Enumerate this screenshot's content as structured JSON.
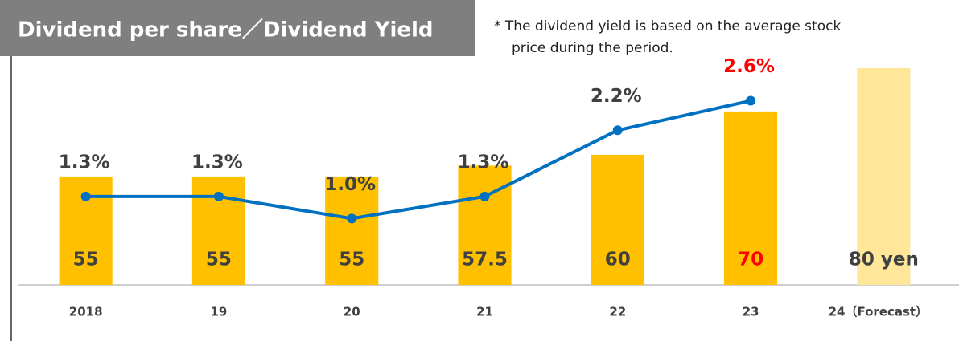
{
  "chart_data": {
    "type": "bar-line",
    "title": "Dividend per share／Dividend Yield",
    "annotation": [
      "* The dividend yield is based on the average stock",
      "price during the period."
    ],
    "categories": [
      "2018",
      "19",
      "20",
      "21",
      "22",
      "23",
      "24（Forecast）"
    ],
    "series": [
      {
        "type": "bar",
        "colors": [
          "#ffc000",
          "#ffc000",
          "#ffc000",
          "#ffc000",
          "#ffc000",
          "#ffc000",
          "#ffe699"
        ],
        "values": [
          55,
          55,
          55,
          57.5,
          60,
          70,
          80
        ],
        "value_labels": [
          "55",
          "55",
          "55",
          "57.5",
          "60",
          "70",
          "80 yen"
        ],
        "label_colors": [
          "#404040",
          "#404040",
          "#404040",
          "#404040",
          "#404040",
          "#ff0000",
          "#404040"
        ]
      },
      {
        "type": "line",
        "axis": "y2",
        "color": "#0070c0",
        "values": [
          1.3,
          1.3,
          1.0,
          1.3,
          2.2,
          2.6,
          null
        ],
        "value_labels": [
          "1.3%",
          "1.3%",
          "1.0%",
          "1.3%",
          "2.2%",
          "2.6%",
          null
        ],
        "label_colors": [
          "#404040",
          "#404040",
          "#404040",
          "#404040",
          "#404040",
          "#ff0000",
          null
        ]
      }
    ],
    "ylim": [
      30,
      92
    ],
    "y2lim": [
      0.1,
      3.75
    ]
  }
}
